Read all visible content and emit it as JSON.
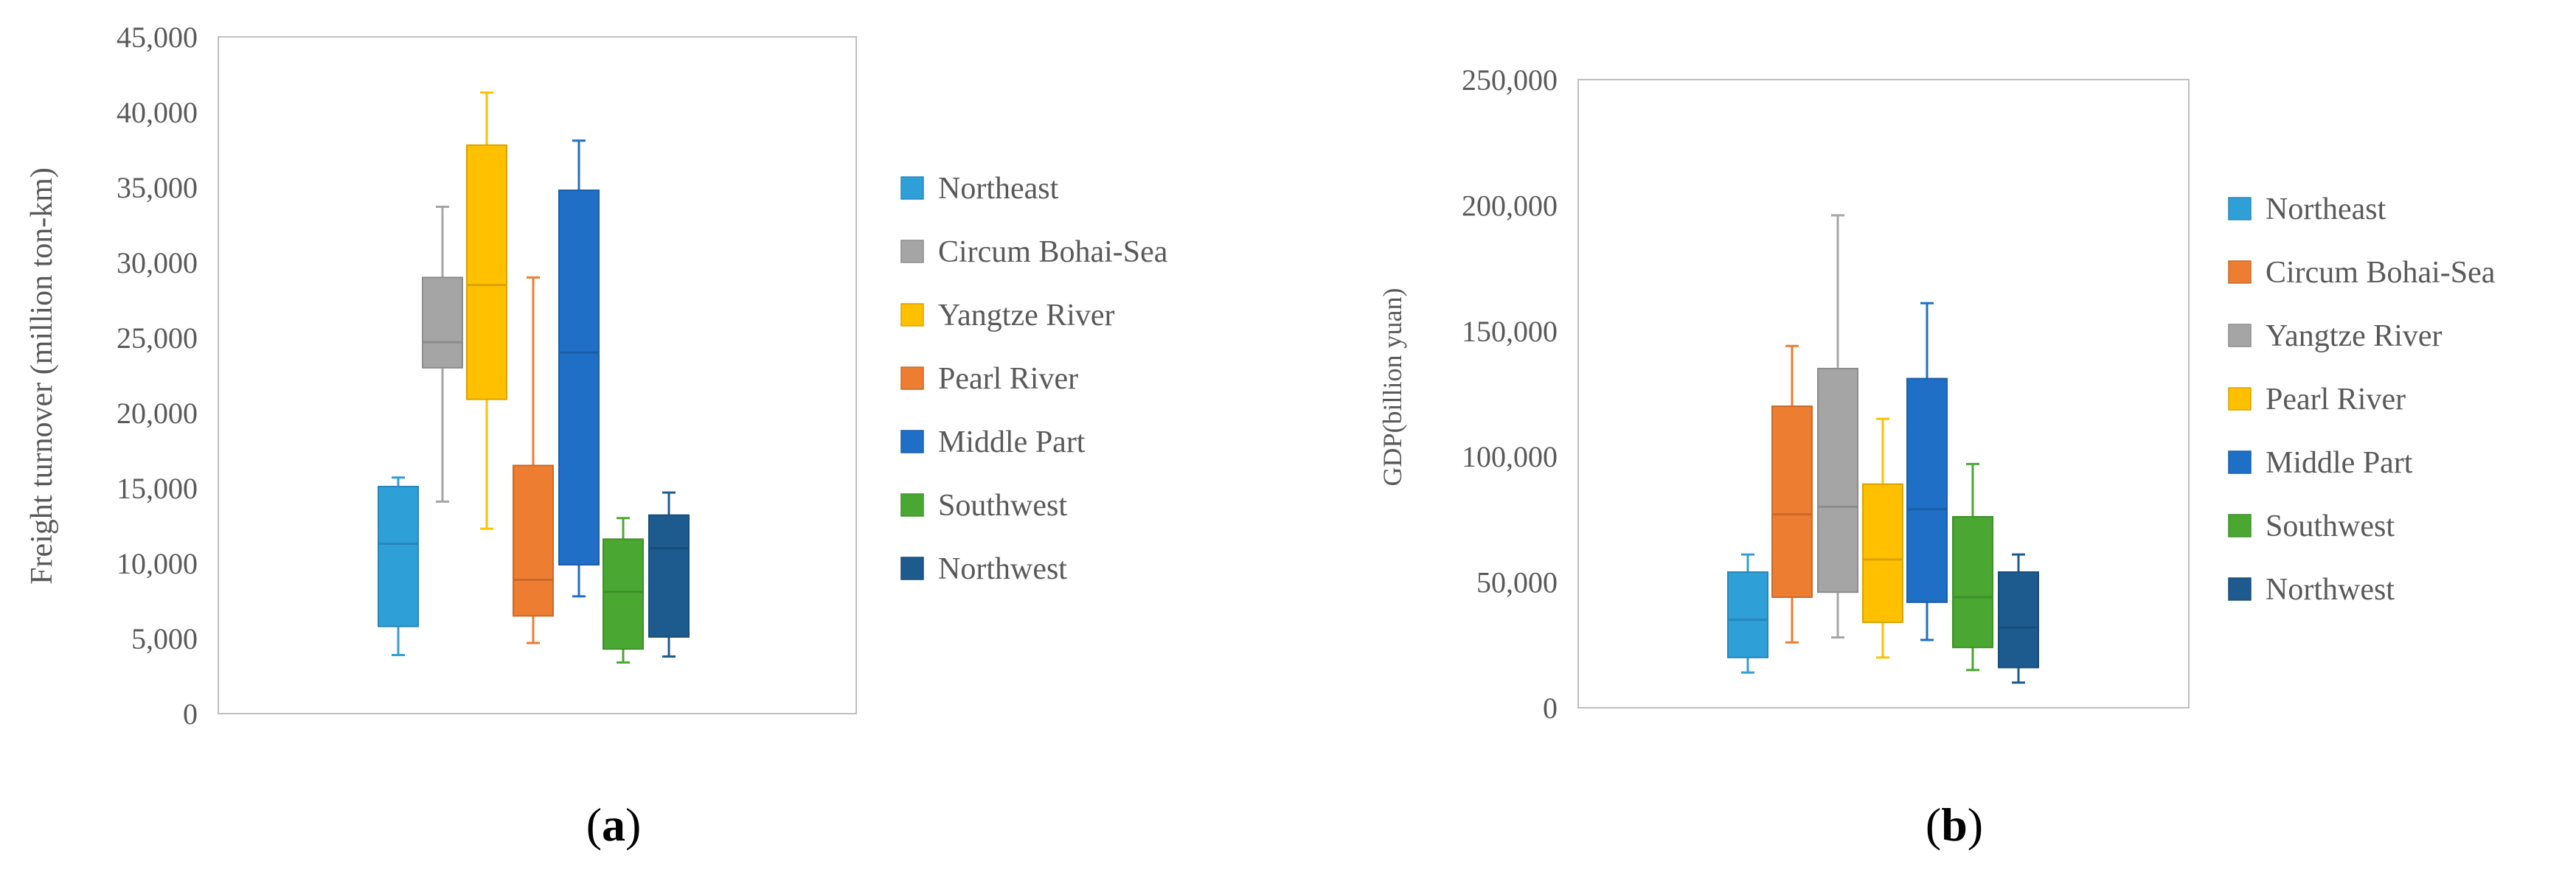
{
  "charts": [
    {
      "panel_label": "a",
      "chart_data": {
        "type": "box",
        "ylabel": "Freight turnover (million ton-km)",
        "ylim": [
          0,
          45000
        ],
        "yticks": [
          0,
          5000,
          10000,
          15000,
          20000,
          25000,
          30000,
          35000,
          40000,
          45000
        ],
        "ytick_labels": [
          "0",
          "5,000",
          "10,000",
          "15,000",
          "20,000",
          "25,000",
          "30,000",
          "35,000",
          "40,000",
          "45,000"
        ],
        "legend_position": "right",
        "series": [
          {
            "name": "Northeast",
            "color": "#2f9fd8",
            "min": 3900,
            "q1": 5800,
            "median": 11300,
            "q3": 15100,
            "max": 15700
          },
          {
            "name": "Circum Bohai-Sea",
            "color": "#a5a5a5",
            "min": 14100,
            "q1": 23000,
            "median": 24700,
            "q3": 29000,
            "max": 33700
          },
          {
            "name": "Yangtze River",
            "color": "#ffc000",
            "min": 12300,
            "q1": 20900,
            "median": 28500,
            "q3": 37800,
            "max": 41300
          },
          {
            "name": "Pearl River",
            "color": "#ed7d31",
            "min": 4700,
            "q1": 6500,
            "median": 8900,
            "q3": 16500,
            "max": 29000
          },
          {
            "name": "Middle Part",
            "color": "#1f6fc6",
            "min": 7800,
            "q1": 9900,
            "median": 24000,
            "q3": 34800,
            "max": 38100
          },
          {
            "name": "Southwest",
            "color": "#4aa832",
            "min": 3400,
            "q1": 4300,
            "median": 8100,
            "q3": 11600,
            "max": 13000
          },
          {
            "name": "Northwest",
            "color": "#1d5a8e",
            "min": 3800,
            "q1": 5100,
            "median": 11000,
            "q3": 13200,
            "max": 14700
          }
        ]
      }
    },
    {
      "panel_label": "b",
      "chart_data": {
        "type": "box",
        "ylabel": "GDP(billion yuan)",
        "ylim": [
          0,
          250000
        ],
        "yticks": [
          0,
          50000,
          100000,
          150000,
          200000,
          250000
        ],
        "ytick_labels": [
          "0",
          "50,000",
          "100,000",
          "150,000",
          "200,000",
          "250,000"
        ],
        "legend_position": "right",
        "series": [
          {
            "name": "Northeast",
            "color": "#2f9fd8",
            "min": 14000,
            "q1": 20000,
            "median": 35000,
            "q3": 54000,
            "max": 61000
          },
          {
            "name": "Circum Bohai-Sea",
            "color": "#ed7d31",
            "min": 26000,
            "q1": 44000,
            "median": 77000,
            "q3": 120000,
            "max": 144000
          },
          {
            "name": "Yangtze River",
            "color": "#a5a5a5",
            "min": 28000,
            "q1": 46000,
            "median": 80000,
            "q3": 135000,
            "max": 196000
          },
          {
            "name": "Pearl River",
            "color": "#ffc000",
            "min": 20000,
            "q1": 34000,
            "median": 59000,
            "q3": 89000,
            "max": 115000
          },
          {
            "name": "Middle Part",
            "color": "#1f6fc6",
            "min": 27000,
            "q1": 42000,
            "median": 79000,
            "q3": 131000,
            "max": 161000
          },
          {
            "name": "Southwest",
            "color": "#4aa832",
            "min": 15000,
            "q1": 24000,
            "median": 44000,
            "q3": 76000,
            "max": 97000
          },
          {
            "name": "Northwest",
            "color": "#1d5a8e",
            "min": 10000,
            "q1": 16000,
            "median": 32000,
            "q3": 54000,
            "max": 61000
          }
        ]
      }
    }
  ]
}
